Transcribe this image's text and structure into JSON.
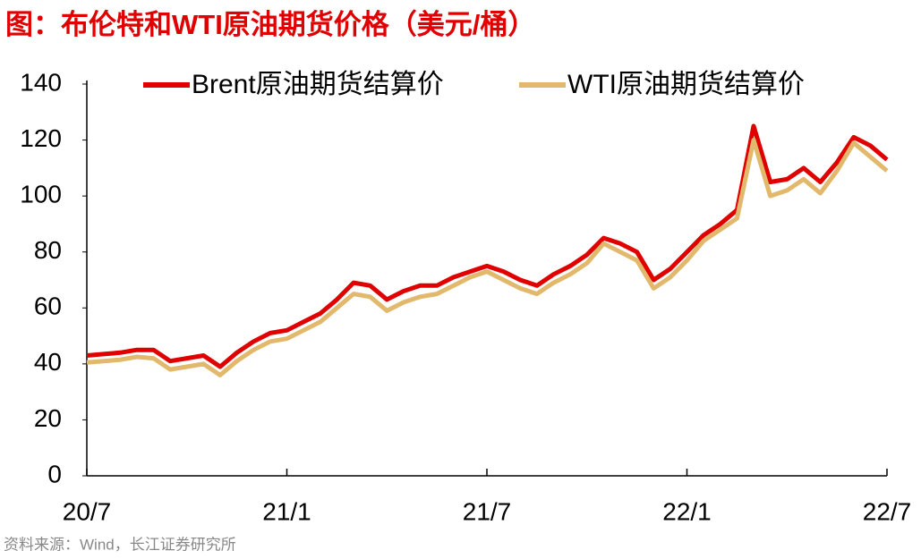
{
  "chart_data": {
    "type": "line",
    "title": "图：布伦特和WTI原油期货价格（美元/桶）",
    "source": "资料来源：Wind，长江证券研究所",
    "categories": [
      "20/7",
      null,
      null,
      null,
      null,
      null,
      null,
      null,
      null,
      null,
      null,
      null,
      "21/1",
      null,
      null,
      null,
      null,
      null,
      null,
      null,
      null,
      null,
      null,
      null,
      "21/7",
      null,
      null,
      null,
      null,
      null,
      null,
      null,
      null,
      null,
      null,
      null,
      "22/1",
      null,
      null,
      null,
      null,
      null,
      null,
      null,
      null,
      null,
      null,
      null,
      "22/7"
    ],
    "series": [
      {
        "name": "Brent原油期货结算价",
        "color": "#e00000",
        "values": [
          43,
          43.5,
          44,
          45,
          45,
          41,
          42,
          43,
          39,
          44,
          48,
          51,
          52,
          55,
          58,
          63,
          69,
          68,
          63,
          66,
          68,
          68,
          71,
          73,
          75,
          73,
          70,
          68,
          72,
          75,
          79,
          85,
          83,
          80,
          70,
          74,
          80,
          86,
          90,
          95,
          125,
          105,
          106,
          110,
          105,
          112,
          121,
          118,
          113
        ]
      },
      {
        "name": "WTI原油期货结算价",
        "color": "#e2b86c",
        "values": [
          40.5,
          41,
          41.5,
          42.5,
          42,
          38,
          39,
          40,
          36,
          41,
          45,
          48,
          49,
          52,
          55,
          60,
          65,
          64,
          59,
          62,
          64,
          65,
          68,
          71,
          73,
          70,
          67,
          65,
          69,
          72,
          76,
          83,
          80,
          77,
          67,
          71,
          77,
          84,
          88,
          92,
          120,
          100,
          102,
          106,
          101,
          109,
          119,
          114,
          109
        ]
      }
    ],
    "ylim": [
      0,
      140
    ],
    "yticks": [
      0,
      20,
      40,
      60,
      80,
      100,
      120,
      140
    ]
  }
}
